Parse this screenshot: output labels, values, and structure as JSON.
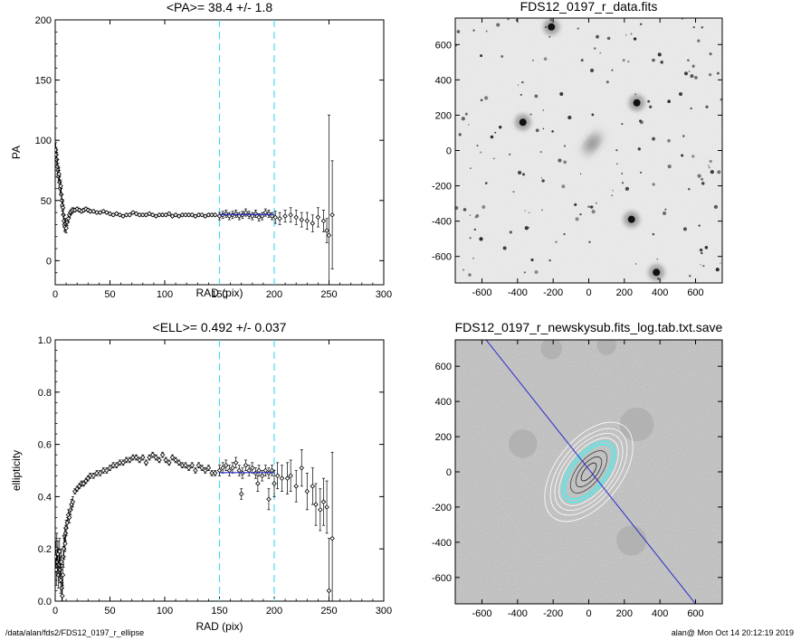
{
  "footer": {
    "path": "/data/alan/fds2/FDS12_0197_r_ellipse",
    "stamp": "alan@  Mon Oct 14 20:12:19 2019"
  },
  "chart_data": [
    {
      "id": "pa",
      "type": "scatter",
      "title": "<PA>=  38.4 +/-   1.8",
      "xlabel": "RAD (pix)",
      "ylabel": "PA",
      "xlim": [
        0,
        300
      ],
      "ylim": [
        -20,
        200
      ],
      "xticks": [
        0,
        50,
        100,
        150,
        200,
        250,
        300
      ],
      "yticks": [
        0,
        50,
        100,
        150,
        200
      ],
      "grid": false,
      "vlines": [
        150,
        200
      ],
      "vline_color": "#4fd8e8",
      "fit_color": "#2a2acc",
      "marker_color": "#000000",
      "fit": {
        "x": [
          150,
          200
        ],
        "y": [
          38.4,
          38.4
        ]
      },
      "series": [
        {
          "x": [
            0.5,
            1,
            1.5,
            2,
            2.5,
            3,
            3.5,
            4,
            4.5,
            5,
            5.5,
            6,
            6.5,
            7,
            7.5,
            8,
            8.5,
            9,
            9.5,
            10,
            11,
            12,
            13,
            14,
            15,
            16,
            18,
            20,
            22,
            24,
            26,
            28,
            30,
            32,
            35,
            38,
            41,
            44,
            47,
            50,
            53,
            56,
            59,
            62,
            65,
            68,
            71,
            74,
            77,
            80,
            83,
            86,
            89,
            92,
            95,
            98,
            101,
            104,
            107,
            110,
            113,
            116,
            119,
            122,
            125,
            128,
            131,
            134,
            137,
            140,
            143,
            146
          ],
          "y": [
            92,
            88,
            84,
            78,
            75,
            70,
            72,
            65,
            60,
            62,
            55,
            50,
            46,
            44,
            38,
            33,
            30,
            28,
            31,
            27,
            32,
            35,
            38,
            40,
            41,
            42,
            42,
            43,
            42,
            41,
            42,
            43,
            42,
            41,
            41,
            40,
            40,
            41,
            40,
            39,
            38,
            39,
            38,
            37,
            38,
            38,
            40,
            39,
            38,
            38,
            38,
            39,
            38,
            37,
            38,
            38,
            38,
            39,
            37,
            38,
            37,
            38,
            38,
            38,
            38,
            37,
            38,
            38,
            37,
            38,
            38,
            38
          ],
          "err": [
            6,
            6,
            6,
            6,
            6,
            5,
            5,
            5,
            5,
            5,
            5,
            5,
            5,
            5,
            5,
            5,
            5,
            4,
            4,
            4,
            3,
            3,
            2,
            2,
            2,
            2,
            1.5,
            1.5,
            1.5,
            1.5,
            1.5,
            1.5,
            1.5,
            1.5,
            1.2,
            1.2,
            1.2,
            1.2,
            1.2,
            1.2,
            1.2,
            1.2,
            1.2,
            1.2,
            1.2,
            1.2,
            1.2,
            1.2,
            1.2,
            1.2,
            1.2,
            1.2,
            1.2,
            1.2,
            1.2,
            1.2,
            1.2,
            1.2,
            1.2,
            1.2,
            1.2,
            1.2,
            1.2,
            1.2,
            1.2,
            1.2,
            1.2,
            1.2,
            1.2,
            1.2,
            1.2,
            1.2
          ]
        },
        {
          "x": [
            150,
            153,
            156,
            159,
            162,
            165,
            168,
            171,
            174,
            177,
            180,
            183,
            186,
            189,
            192,
            195,
            198
          ],
          "y": [
            37,
            38,
            39,
            37,
            38,
            39,
            37,
            38,
            40,
            38,
            37,
            39,
            36,
            37,
            40,
            39,
            37
          ],
          "err": [
            3,
            3,
            3,
            3,
            3,
            3,
            3,
            3,
            3,
            3,
            3,
            3,
            3,
            3,
            3,
            3,
            3
          ]
        },
        {
          "x": [
            201,
            205,
            210,
            215,
            220,
            225,
            230,
            235,
            240,
            245,
            248,
            250,
            253
          ],
          "y": [
            36,
            35,
            37,
            38,
            36,
            34,
            33,
            31,
            36,
            33,
            25,
            21,
            38
          ],
          "err": [
            5,
            5,
            5,
            6,
            6,
            6,
            7,
            7,
            8,
            9,
            10,
            100,
            45
          ]
        }
      ]
    },
    {
      "id": "ell",
      "type": "scatter",
      "title": "<ELL>= 0.492 +/-  0.037",
      "xlabel": "RAD (pix)",
      "ylabel": "ellipticity",
      "xlim": [
        0,
        300
      ],
      "ylim": [
        0,
        1
      ],
      "xticks": [
        0,
        50,
        100,
        150,
        200,
        250,
        300
      ],
      "yticks": [
        0.0,
        0.2,
        0.4,
        0.6,
        0.8,
        1.0
      ],
      "grid": false,
      "vlines": [
        150,
        200
      ],
      "vline_color": "#4fd8e8",
      "fit_color": "#2a2acc",
      "marker_color": "#000000",
      "fit": {
        "x": [
          150,
          200
        ],
        "y": [
          0.492,
          0.492
        ]
      },
      "series": [
        {
          "x": [
            0.5,
            1,
            1.5,
            2,
            2.5,
            3,
            3.5,
            4,
            4.5,
            5,
            5.5,
            6,
            6.5,
            7,
            7.5,
            8,
            8.5,
            9,
            9.5,
            10,
            11,
            12,
            13,
            14,
            15,
            16,
            18,
            20,
            22,
            24,
            26,
            28,
            30,
            32,
            35,
            38,
            41,
            44,
            47,
            50,
            53,
            56,
            59,
            62,
            65,
            68,
            71,
            74,
            77,
            80,
            83,
            86,
            89,
            92,
            95,
            98,
            101,
            104,
            107,
            110,
            113,
            116,
            119,
            122,
            125,
            128,
            131,
            134,
            137,
            140,
            143,
            146
          ],
          "y": [
            0.17,
            0.12,
            0.2,
            0.15,
            0.18,
            0.1,
            0.14,
            0.19,
            0.12,
            0.08,
            0.15,
            0.05,
            0.02,
            0.1,
            0.17,
            0.2,
            0.25,
            0.22,
            0.26,
            0.28,
            0.3,
            0.33,
            0.32,
            0.35,
            0.37,
            0.38,
            0.42,
            0.43,
            0.44,
            0.45,
            0.45,
            0.46,
            0.47,
            0.48,
            0.48,
            0.49,
            0.49,
            0.5,
            0.5,
            0.51,
            0.52,
            0.52,
            0.53,
            0.53,
            0.54,
            0.54,
            0.55,
            0.55,
            0.54,
            0.55,
            0.53,
            0.55,
            0.56,
            0.55,
            0.54,
            0.56,
            0.54,
            0.53,
            0.55,
            0.54,
            0.53,
            0.52,
            0.52,
            0.51,
            0.52,
            0.5,
            0.52,
            0.51,
            0.5,
            0.51,
            0.49,
            0.49
          ],
          "err": [
            0.06,
            0.06,
            0.06,
            0.05,
            0.05,
            0.05,
            0.05,
            0.05,
            0.05,
            0.05,
            0.05,
            0.05,
            0.05,
            0.04,
            0.04,
            0.04,
            0.03,
            0.03,
            0.03,
            0.03,
            0.02,
            0.02,
            0.02,
            0.02,
            0.02,
            0.02,
            0.01,
            0.01,
            0.01,
            0.01,
            0.01,
            0.01,
            0.01,
            0.01,
            0.01,
            0.01,
            0.01,
            0.01,
            0.01,
            0.01,
            0.01,
            0.01,
            0.01,
            0.01,
            0.01,
            0.01,
            0.01,
            0.01,
            0.01,
            0.01,
            0.01,
            0.01,
            0.01,
            0.01,
            0.01,
            0.01,
            0.01,
            0.01,
            0.01,
            0.01,
            0.01,
            0.01,
            0.01,
            0.01,
            0.01,
            0.01,
            0.01,
            0.01,
            0.01,
            0.01,
            0.01,
            0.01
          ]
        },
        {
          "x": [
            150,
            153,
            156,
            159,
            162,
            165,
            168,
            171,
            174,
            177,
            180,
            183,
            186,
            189,
            192,
            195,
            198
          ],
          "y": [
            0.5,
            0.51,
            0.52,
            0.5,
            0.51,
            0.53,
            0.5,
            0.49,
            0.52,
            0.5,
            0.51,
            0.49,
            0.5,
            0.48,
            0.5,
            0.49,
            0.5
          ],
          "err": [
            0.02,
            0.02,
            0.02,
            0.02,
            0.02,
            0.02,
            0.02,
            0.02,
            0.02,
            0.02,
            0.02,
            0.02,
            0.02,
            0.02,
            0.02,
            0.02,
            0.02
          ]
        },
        {
          "x": [
            170,
            185,
            195,
            200,
            203,
            207,
            212,
            215,
            220,
            225,
            230,
            235,
            238,
            242,
            245,
            248,
            250,
            253
          ],
          "y": [
            0.41,
            0.45,
            0.39,
            0.45,
            0.48,
            0.47,
            0.47,
            0.48,
            0.44,
            0.51,
            0.42,
            0.44,
            0.37,
            0.35,
            0.38,
            0.36,
            0.04,
            0.24
          ],
          "err": [
            0.02,
            0.03,
            0.04,
            0.05,
            0.05,
            0.05,
            0.06,
            0.06,
            0.06,
            0.07,
            0.07,
            0.07,
            0.08,
            0.08,
            0.09,
            0.1,
            0.2,
            0.33
          ]
        }
      ]
    },
    {
      "id": "img1",
      "type": "image",
      "title": "FDS12_0197_r_data.fits",
      "xlim": [
        -750,
        750
      ],
      "ylim": [
        -750,
        750
      ],
      "xticks": [
        -600,
        -400,
        -200,
        0,
        200,
        400,
        600
      ],
      "yticks": [
        -600,
        -400,
        -200,
        0,
        200,
        400,
        600
      ],
      "background": "#ededed",
      "galaxy": {
        "x": 20,
        "y": 40,
        "a": 75,
        "b": 35,
        "angle_deg": 38.4
      },
      "bright_stars": [
        {
          "x": 270,
          "y": 270
        },
        {
          "x": 240,
          "y": -390
        },
        {
          "x": -370,
          "y": 160
        },
        {
          "x": -210,
          "y": 700
        },
        {
          "x": 380,
          "y": -690
        }
      ]
    },
    {
      "id": "img2",
      "type": "image",
      "title": "FDS12_0197_r_newskysub.fits_log.tab.txt.save",
      "xlim": [
        -750,
        750
      ],
      "ylim": [
        -750,
        750
      ],
      "xticks": [
        -600,
        -400,
        -200,
        0,
        200,
        400,
        600
      ],
      "yticks": [
        -600,
        -400,
        -200,
        0,
        200,
        400,
        600
      ],
      "background": "#c4c4c4",
      "mask_color": "#b2b2b2",
      "line_color": "#2a2acc",
      "ring_color": "#6fe0e0",
      "pa_line": {
        "x": [
          -600,
          600
        ],
        "y": [
          780,
          -750
        ]
      },
      "masks": [
        {
          "x": 270,
          "y": 270,
          "r": 95
        },
        {
          "x": 240,
          "y": -390,
          "r": 85
        },
        {
          "x": -370,
          "y": 160,
          "r": 80
        },
        {
          "x": -210,
          "y": 700,
          "r": 60
        },
        {
          "x": 100,
          "y": 720,
          "r": 55
        }
      ]
    }
  ]
}
